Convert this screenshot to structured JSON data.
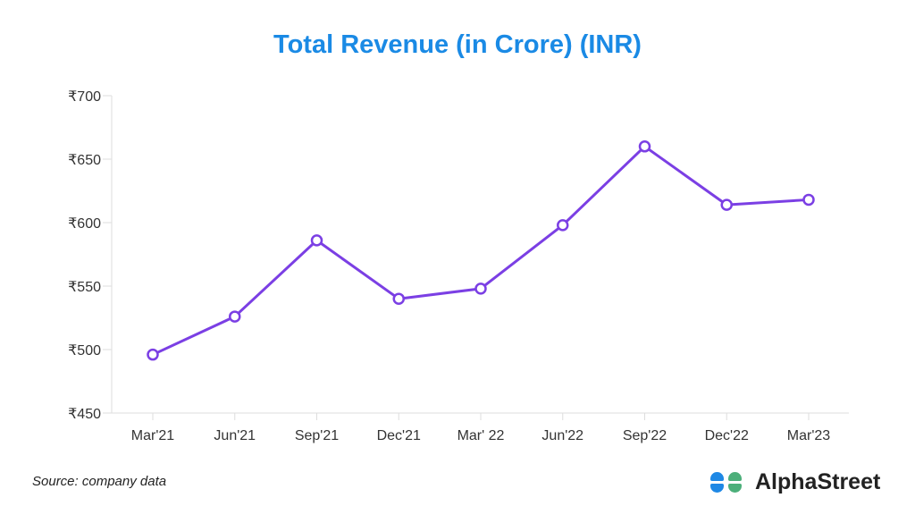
{
  "chart_data": {
    "type": "line",
    "title": "Total Revenue (in Crore) (INR)",
    "xlabel": "",
    "ylabel": "",
    "categories": [
      "Mar'21",
      "Jun'21",
      "Sep'21",
      "Dec'21",
      "Mar' 22",
      "Jun'22",
      "Sep'22",
      "Dec'22",
      "Mar'23"
    ],
    "series": [
      {
        "name": "Total Revenue",
        "values": [
          496,
          526,
          586,
          540,
          548,
          598,
          660,
          614,
          618
        ]
      }
    ],
    "ylim": [
      450,
      700
    ],
    "yticks": [
      450,
      500,
      550,
      600,
      650,
      700
    ],
    "ytick_prefix": "₹",
    "grid": false,
    "line_color": "#7b3fe4"
  },
  "footer": {
    "source": "Source: company data",
    "logo_text": "AlphaStreet"
  },
  "colors": {
    "title": "#1a8ae5",
    "logo_blue": "#1e88e5",
    "logo_green": "#4caf7a"
  }
}
